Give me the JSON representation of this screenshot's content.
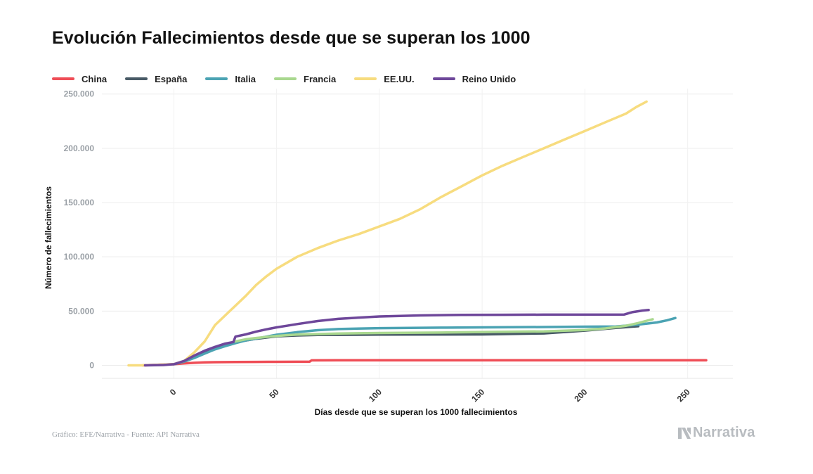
{
  "title": "Evolución Fallecimientos desde que se superan los 1000",
  "source": "Gráfico: EFE/Narrativa - Fuente: API Narrativa",
  "brand": {
    "name": "Narrativa",
    "icon": "narrativa-logo-icon"
  },
  "legend": [
    {
      "label": "China",
      "color": "#ef4d56"
    },
    {
      "label": "España",
      "color": "#485a66"
    },
    {
      "label": "Italia",
      "color": "#4ba3b3"
    },
    {
      "label": "Francia",
      "color": "#a9d88f"
    },
    {
      "label": "EE.UU.",
      "color": "#f7dc7f"
    },
    {
      "label": "Reino Unido",
      "color": "#6e479a"
    }
  ],
  "chart_data": {
    "type": "line",
    "title": "Evolución Fallecimientos desde que se superan los 1000",
    "xlabel": "Días desde que se superan los 1000 fallecimientos",
    "ylabel": "Número de fallecimientos",
    "xlim": [
      -35,
      272
    ],
    "ylim": [
      -12000,
      255000
    ],
    "x_ticks": [
      0,
      50,
      100,
      150,
      200,
      250
    ],
    "x_tick_labels": [
      "0",
      "50",
      "100",
      "150",
      "200",
      "250"
    ],
    "y_ticks": [
      0,
      50000,
      100000,
      150000,
      200000,
      250000
    ],
    "y_tick_labels": [
      "0",
      "50.000",
      "100.000",
      "150.000",
      "200.000",
      "250.000"
    ],
    "grid": true,
    "legend_position": "top-left",
    "series": [
      {
        "name": "China",
        "color": "#ef4d56",
        "x": [
          -15,
          0,
          5,
          10,
          15,
          20,
          25,
          30,
          40,
          50,
          60,
          66,
          67,
          80,
          100,
          150,
          200,
          250,
          259
        ],
        "y": [
          0,
          1000,
          1800,
          2300,
          2700,
          2900,
          3000,
          3100,
          3180,
          3230,
          3270,
          3300,
          4600,
          4630,
          4640,
          4650,
          4660,
          4680,
          4700
        ]
      },
      {
        "name": "España",
        "color": "#485a66",
        "x": [
          0,
          5,
          10,
          15,
          20,
          25,
          30,
          35,
          40,
          45,
          50,
          60,
          70,
          100,
          150,
          180,
          200,
          215,
          226
        ],
        "y": [
          1000,
          3400,
          7700,
          12400,
          16300,
          19300,
          21300,
          22900,
          24500,
          25600,
          26700,
          27500,
          28000,
          28300,
          28500,
          29400,
          32000,
          34500,
          36000
        ]
      },
      {
        "name": "Italia",
        "color": "#4ba3b3",
        "x": [
          0,
          5,
          10,
          15,
          20,
          25,
          30,
          35,
          40,
          45,
          50,
          60,
          70,
          80,
          100,
          130,
          150,
          180,
          200,
          215,
          225,
          235,
          240,
          244
        ],
        "y": [
          1000,
          3400,
          6800,
          10800,
          14700,
          17700,
          20500,
          23000,
          24600,
          26400,
          28200,
          30600,
          32400,
          33400,
          34300,
          34750,
          35000,
          35300,
          35600,
          35800,
          37300,
          39500,
          41500,
          43600
        ]
      },
      {
        "name": "Francia",
        "color": "#a9d88f",
        "x": [
          30,
          35,
          40,
          45,
          50,
          55,
          60,
          70,
          80,
          100,
          130,
          150,
          180,
          200,
          210,
          220,
          226,
          230,
          233
        ],
        "y": [
          22000,
          24000,
          25200,
          26200,
          27100,
          27800,
          28300,
          28800,
          29300,
          29800,
          30200,
          30700,
          31300,
          32500,
          34000,
          36500,
          39000,
          41000,
          42500
        ]
      },
      {
        "name": "EE.UU.",
        "color": "#f7dc7f",
        "x": [
          -22,
          -15,
          -10,
          -5,
          0,
          5,
          10,
          15,
          20,
          25,
          30,
          35,
          40,
          45,
          50,
          60,
          70,
          80,
          90,
          100,
          110,
          120,
          130,
          140,
          150,
          160,
          170,
          180,
          190,
          200,
          210,
          220,
          225,
          230
        ],
        "y": [
          0,
          0,
          300,
          700,
          1100,
          4000,
          12000,
          22000,
          37000,
          46000,
          55000,
          64000,
          74000,
          82000,
          89000,
          100000,
          108000,
          115000,
          121000,
          128000,
          135000,
          144000,
          155000,
          165000,
          175000,
          184000,
          192000,
          200000,
          208000,
          216000,
          224000,
          232000,
          238000,
          243000
        ]
      },
      {
        "name": "Reino Unido",
        "color": "#6e479a",
        "x": [
          -14,
          -5,
          0,
          5,
          10,
          15,
          20,
          25,
          29,
          30,
          35,
          40,
          45,
          50,
          55,
          60,
          70,
          80,
          90,
          100,
          120,
          140,
          160,
          180,
          200,
          219,
          223,
          228,
          231
        ],
        "y": [
          0,
          300,
          1000,
          4000,
          9000,
          13500,
          17000,
          20000,
          21500,
          26500,
          28500,
          31000,
          33200,
          35000,
          36500,
          38000,
          40800,
          42800,
          44000,
          45000,
          46000,
          46500,
          46600,
          46700,
          46700,
          46800,
          49000,
          50500,
          51000
        ]
      }
    ]
  }
}
